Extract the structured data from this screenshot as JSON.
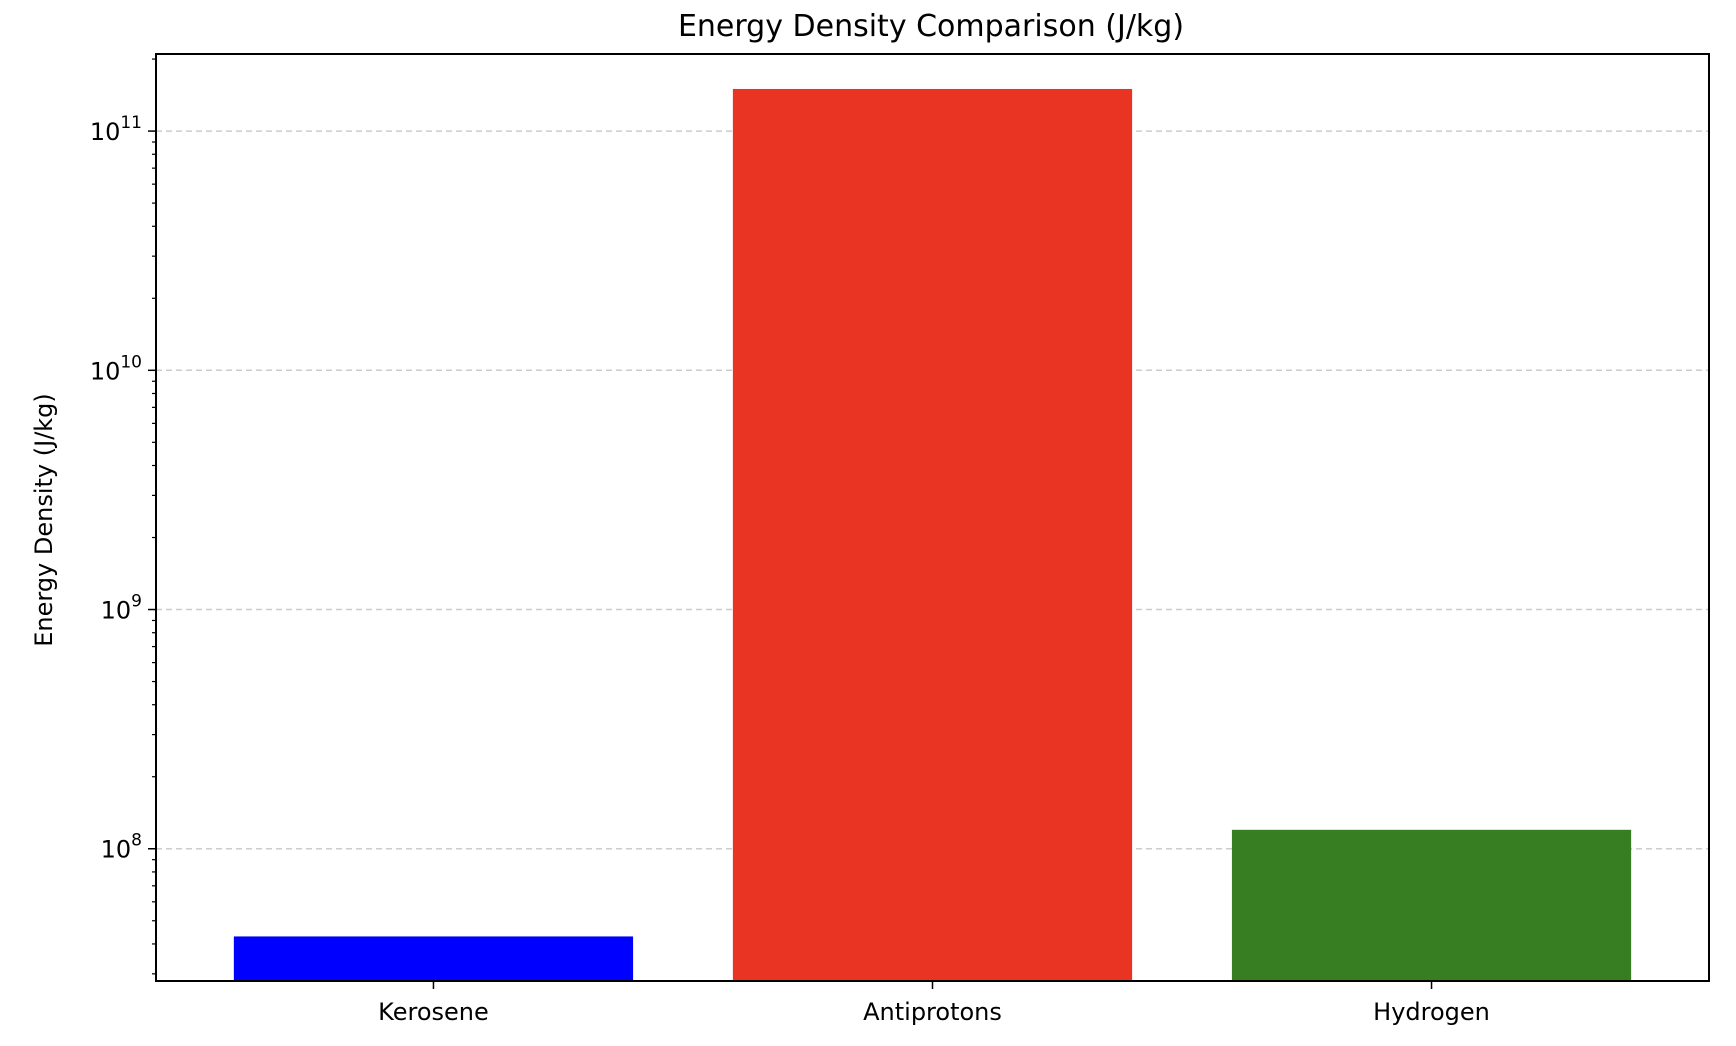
{
  "chart_data": {
    "type": "bar",
    "title": "Energy Density Comparison (J/kg)",
    "xlabel": "",
    "ylabel": "Energy Density (J/kg)",
    "yscale": "log",
    "ylim": [
      28000000,
      210000000000
    ],
    "yticks": [
      {
        "value": 100000000,
        "base": "10",
        "exp": "8"
      },
      {
        "value": 1000000000,
        "base": "10",
        "exp": "9"
      },
      {
        "value": 10000000000,
        "base": "10",
        "exp": "10"
      },
      {
        "value": 100000000000,
        "base": "10",
        "exp": "11"
      }
    ],
    "grid": {
      "axis": "y",
      "style": "dashed",
      "color": "#cccccc"
    },
    "categories": [
      "Kerosene",
      "Antiprotons",
      "Hydrogen"
    ],
    "values": [
      43000000,
      150000000000,
      120000000
    ],
    "colors": [
      "#0000ff",
      "#e93323",
      "#377e22"
    ],
    "legend": "none"
  }
}
